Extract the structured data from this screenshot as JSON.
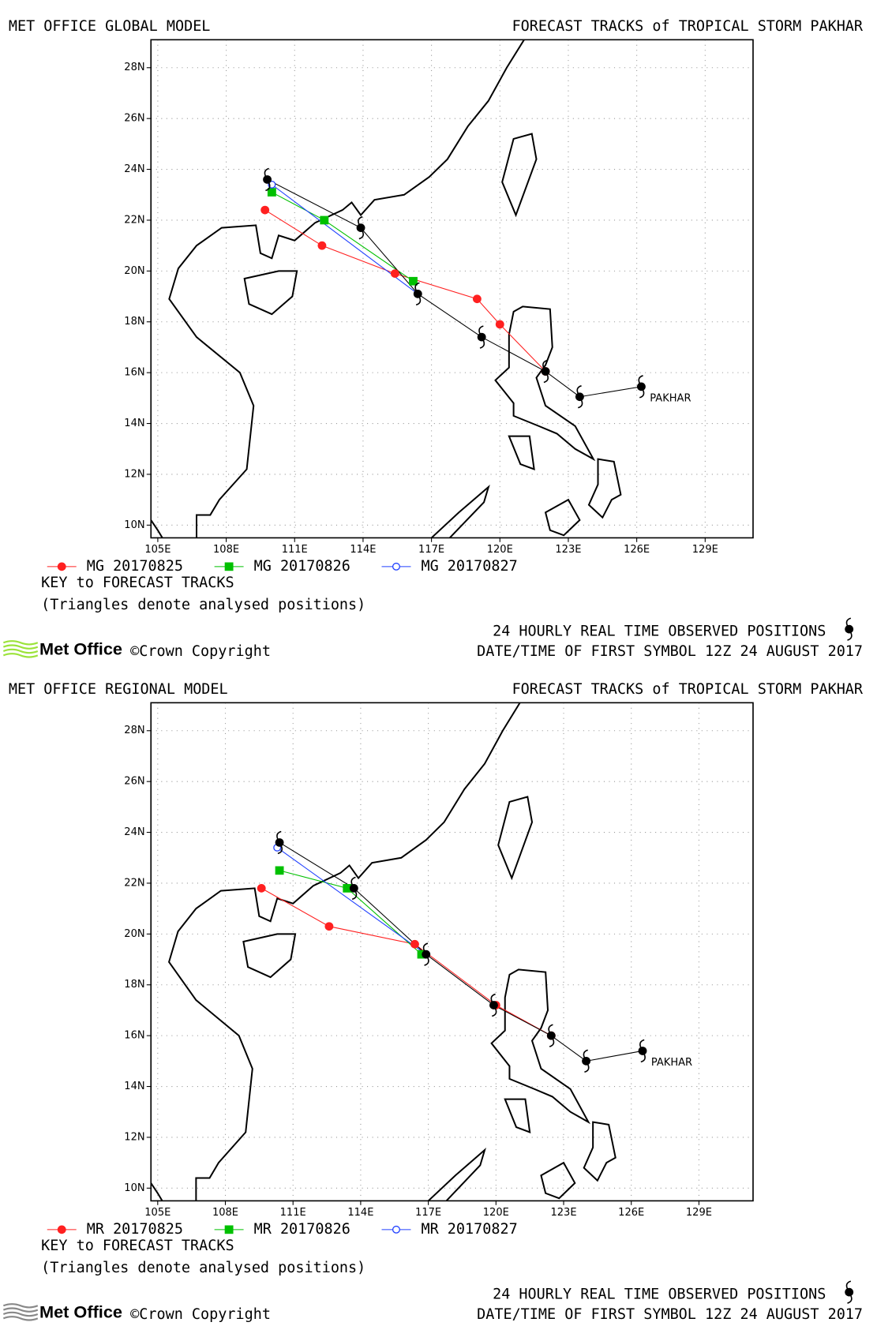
{
  "chart_data": [
    {
      "type": "track-map",
      "model": "MET OFFICE GLOBAL MODEL",
      "title": "FORECAST TRACKS of TROPICAL STORM PAKHAR",
      "storm_label": "PAKHAR",
      "key_title": "KEY to FORECAST TRACKS",
      "note": "(Triangles denote analysed positions)",
      "date_text": "DATE/TIME OF FIRST SYMBOL 12Z 24 AUGUST 2017",
      "logo": "Met Office",
      "copyright": "©Crown Copyright",
      "xlim": [
        104.7,
        131.1
      ],
      "ylim": [
        9.5,
        29.1
      ],
      "grid": true,
      "xticks": [
        {
          "value": 105,
          "label": "105E"
        },
        {
          "value": 108,
          "label": "108E"
        },
        {
          "value": 111,
          "label": "111E"
        },
        {
          "value": 114,
          "label": "114E"
        },
        {
          "value": 117,
          "label": "117E"
        },
        {
          "value": 120,
          "label": "120E"
        },
        {
          "value": 123,
          "label": "123E"
        },
        {
          "value": 126,
          "label": "126E"
        },
        {
          "value": 129,
          "label": "129E"
        }
      ],
      "yticks": [
        {
          "value": 10,
          "label": "10N"
        },
        {
          "value": 12,
          "label": "12N"
        },
        {
          "value": 14,
          "label": "14N"
        },
        {
          "value": 16,
          "label": "16N"
        },
        {
          "value": 18,
          "label": "18N"
        },
        {
          "value": 20,
          "label": "20N"
        },
        {
          "value": 22,
          "label": "22N"
        },
        {
          "value": 24,
          "label": "24N"
        },
        {
          "value": 26,
          "label": "26N"
        },
        {
          "value": 28,
          "label": "28N"
        }
      ],
      "observed": {
        "name": "24 HOURLY REAL TIME OBSERVED POSITIONS",
        "color": "#000000",
        "x": [
          126.2,
          123.5,
          122.0,
          119.2,
          116.4,
          113.9,
          109.8
        ],
        "values": [
          15.45,
          15.05,
          16.05,
          17.4,
          19.1,
          21.7,
          23.6
        ]
      },
      "series": [
        {
          "name": "MG 20170825",
          "color": "#ff2020",
          "marker": "circle",
          "x": [
            122.0,
            120.0,
            119.0,
            115.4,
            112.2,
            109.7
          ],
          "values": [
            16.05,
            17.9,
            18.9,
            19.9,
            21.0,
            22.4
          ]
        },
        {
          "name": "MG 20170826",
          "color": "#00c000",
          "marker": "square",
          "x": [
            116.2,
            112.3,
            110.0
          ],
          "values": [
            19.6,
            22.0,
            23.1
          ]
        },
        {
          "name": "MG 20170827",
          "color": "#2040ff",
          "marker": "open-circle",
          "x": [
            116.4,
            110.0
          ],
          "values": [
            19.1,
            23.4
          ]
        }
      ]
    },
    {
      "type": "track-map",
      "model": "MET OFFICE REGIONAL MODEL",
      "title": "FORECAST TRACKS of TROPICAL STORM PAKHAR",
      "storm_label": "PAKHAR",
      "key_title": "KEY to FORECAST TRACKS",
      "note": "(Triangles denote analysed positions)",
      "date_text": "DATE/TIME OF FIRST SYMBOL 12Z 24 AUGUST 2017",
      "logo": "Met Office",
      "copyright": "©Crown Copyright",
      "xlim": [
        104.7,
        131.4
      ],
      "ylim": [
        9.5,
        29.1
      ],
      "grid": true,
      "xticks": [
        {
          "value": 105,
          "label": "105E"
        },
        {
          "value": 108,
          "label": "108E"
        },
        {
          "value": 111,
          "label": "111E"
        },
        {
          "value": 114,
          "label": "114E"
        },
        {
          "value": 117,
          "label": "117E"
        },
        {
          "value": 120,
          "label": "120E"
        },
        {
          "value": 123,
          "label": "123E"
        },
        {
          "value": 126,
          "label": "126E"
        },
        {
          "value": 129,
          "label": "129E"
        }
      ],
      "yticks": [
        {
          "value": 10,
          "label": "10N"
        },
        {
          "value": 12,
          "label": "12N"
        },
        {
          "value": 14,
          "label": "14N"
        },
        {
          "value": 16,
          "label": "16N"
        },
        {
          "value": 18,
          "label": "18N"
        },
        {
          "value": 20,
          "label": "20N"
        },
        {
          "value": 22,
          "label": "22N"
        },
        {
          "value": 24,
          "label": "24N"
        },
        {
          "value": 26,
          "label": "26N"
        },
        {
          "value": 28,
          "label": "28N"
        }
      ],
      "observed": {
        "name": "24 HOURLY REAL TIME OBSERVED POSITIONS",
        "color": "#000000",
        "x": [
          126.5,
          124.0,
          122.45,
          119.9,
          116.9,
          113.7,
          110.4
        ],
        "values": [
          15.4,
          15.0,
          16.0,
          17.2,
          19.2,
          21.8,
          23.6
        ]
      },
      "series": [
        {
          "name": "MR 20170825",
          "color": "#ff2020",
          "marker": "circle",
          "x": [
            122.45,
            120.0,
            116.4,
            112.6,
            109.6
          ],
          "values": [
            16.0,
            17.2,
            19.6,
            20.3,
            21.8
          ]
        },
        {
          "name": "MR 20170826",
          "color": "#00c000",
          "marker": "square",
          "x": [
            116.7,
            113.4,
            110.4
          ],
          "values": [
            19.2,
            21.8,
            22.5
          ]
        },
        {
          "name": "MR 20170827",
          "color": "#2040ff",
          "marker": "open-circle",
          "x": [
            116.9,
            110.3
          ],
          "values": [
            19.2,
            23.4
          ]
        }
      ]
    }
  ]
}
